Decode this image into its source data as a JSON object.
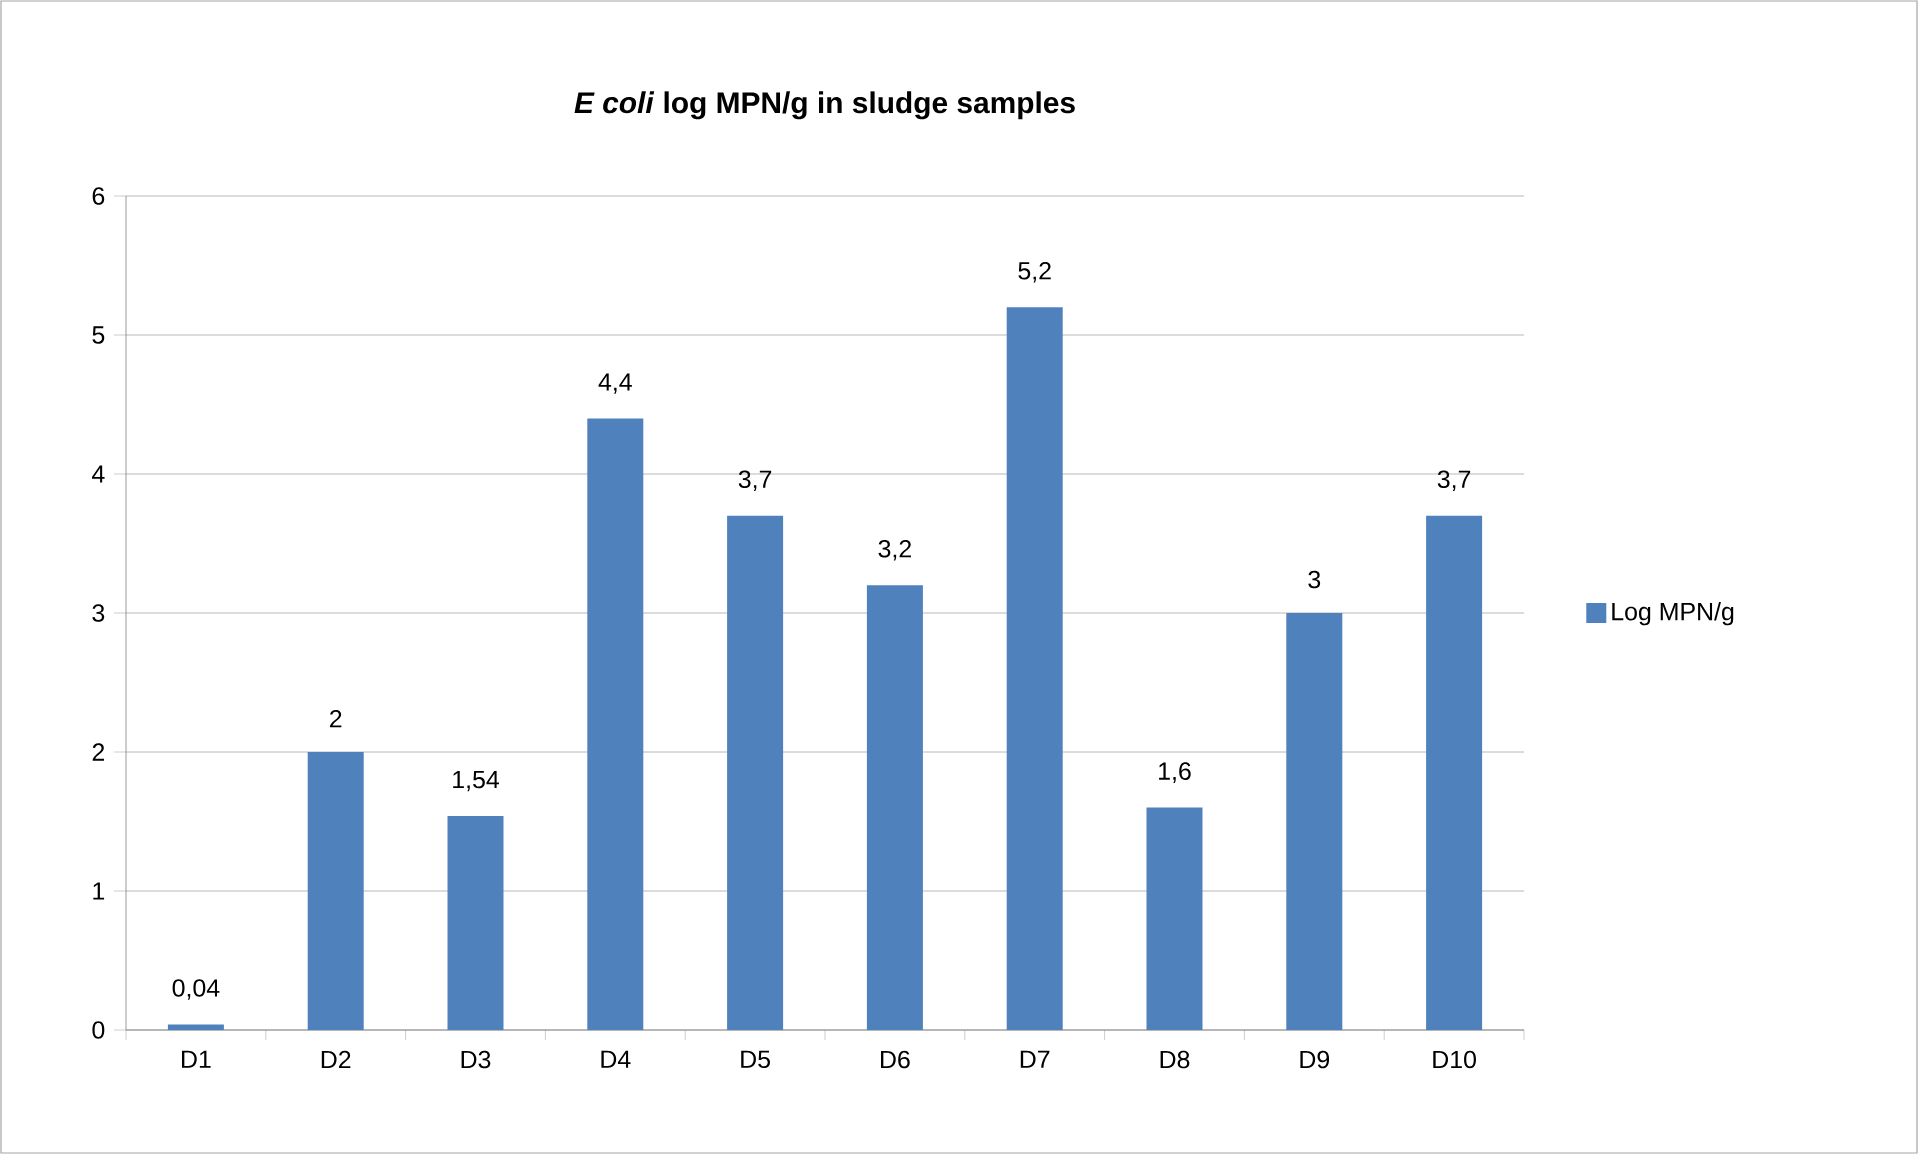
{
  "chart_data": {
    "type": "bar",
    "title": "*E coli* log MPN/g in sludge samples",
    "categories": [
      "D1",
      "D2",
      "D3",
      "D4",
      "D5",
      "D6",
      "D7",
      "D8",
      "D9",
      "D10"
    ],
    "series": [
      {
        "name": "Log MPN/g",
        "color": "#4f81bd",
        "values": [
          0.04,
          2,
          1.54,
          4.4,
          3.7,
          3.2,
          5.2,
          1.6,
          3,
          3.7
        ],
        "value_labels": [
          "0,04",
          "2",
          "1,54",
          "4,4",
          "3,7",
          "3,2",
          "5,2",
          "1,6",
          "3",
          "3,7"
        ]
      }
    ],
    "ylim": [
      0,
      6
    ],
    "yticks": [
      0,
      1,
      2,
      3,
      4,
      5,
      6
    ],
    "grid": "y",
    "legend": "right"
  }
}
